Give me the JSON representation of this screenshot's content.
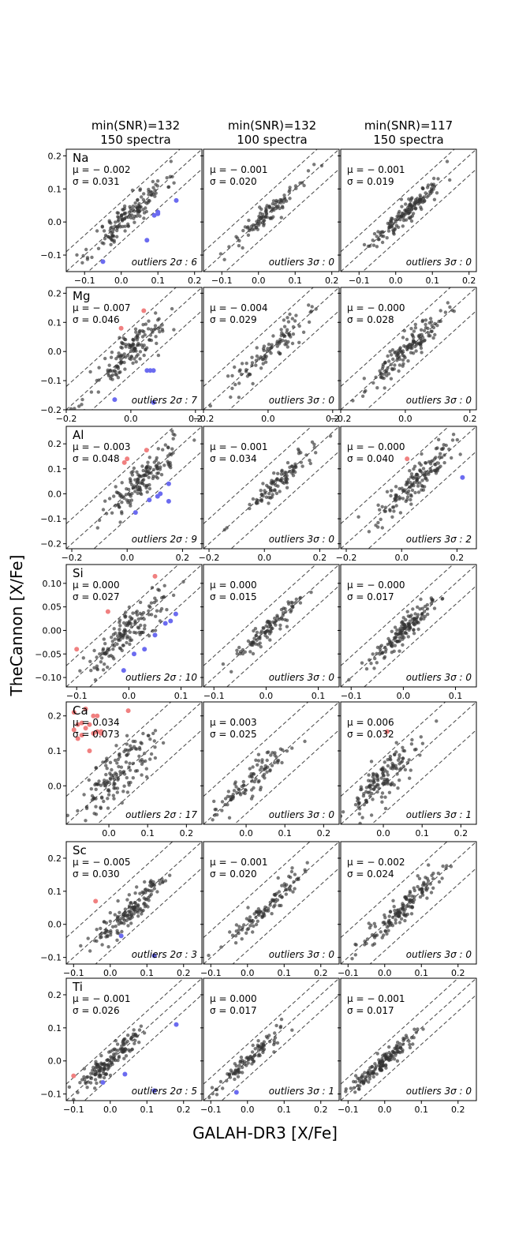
{
  "figure": {
    "column_titles": [
      [
        "min(SNR)=132",
        "150 spectra"
      ],
      [
        "min(SNR)=132",
        "100 spectra"
      ],
      [
        "min(SNR)=117",
        "150 spectra"
      ]
    ],
    "ylabel": "TheCannon [X/Fe]",
    "xlabel": "GALAH-DR3 [X/Fe]"
  },
  "chart_data": {
    "type": "scatter",
    "colors": {
      "point": "#333333",
      "high_outlier": "#f08080",
      "low_outlier": "#6b6bf0",
      "line": "#444444"
    },
    "rows": [
      {
        "element": "Na",
        "xlim": [
          -0.15,
          0.22
        ],
        "ylim": [
          -0.15,
          0.22
        ],
        "xticks": [
          -0.1,
          0.0,
          0.1,
          0.2
        ],
        "xtick_labels": [
          "−0.1",
          "0.0",
          "0.1",
          "0.2"
        ],
        "yticks": [
          -0.1,
          0.0,
          0.1,
          0.2
        ],
        "ytick_labels": [
          "−0.1",
          "0.0",
          "0.1",
          "0.2"
        ],
        "band": 0.06,
        "panels": [
          {
            "mu": "μ = − 0.002",
            "sigma": "σ = 0.031",
            "outliers_label": "outliers 2σ : 6",
            "n": 150,
            "center": [
              0.02,
              0.02
            ],
            "spread": 0.05,
            "scatter": 0.03,
            "seed": 11,
            "outlier_points": [
              [
                0.1,
                0.03,
                "low"
              ],
              [
                0.1,
                0.025,
                "low"
              ],
              [
                0.15,
                0.065,
                "low"
              ],
              [
                0.07,
                -0.055,
                "low"
              ],
              [
                -0.05,
                -0.12,
                "low"
              ],
              [
                0.09,
                0.02,
                "low"
              ]
            ]
          },
          {
            "mu": "μ = − 0.001",
            "sigma": "σ = 0.020",
            "outliers_label": "outliers 3σ : 0",
            "n": 100,
            "center": [
              0.03,
              0.03
            ],
            "spread": 0.05,
            "scatter": 0.02,
            "seed": 12,
            "outlier_points": []
          },
          {
            "mu": "μ = − 0.001",
            "sigma": "σ = 0.019",
            "outliers_label": "outliers 3σ : 0",
            "n": 150,
            "center": [
              0.03,
              0.03
            ],
            "spread": 0.05,
            "scatter": 0.02,
            "seed": 13,
            "outlier_points": []
          }
        ]
      },
      {
        "element": "Mg",
        "xlim": [
          -0.2,
          0.22
        ],
        "ylim": [
          -0.2,
          0.22
        ],
        "xticks": [
          -0.2,
          0.0,
          0.2
        ],
        "xtick_labels": [
          "−0.2",
          "0.0",
          "0.2"
        ],
        "yticks": [
          -0.2,
          -0.1,
          0.0,
          0.1,
          0.2
        ],
        "ytick_labels": [
          "−0.2",
          "−0.1",
          "0.0",
          "0.1",
          "0.2"
        ],
        "band": 0.08,
        "panels": [
          {
            "mu": "μ = − 0.007",
            "sigma": "σ = 0.046",
            "outliers_label": "outliers 2σ : 7",
            "n": 150,
            "center": [
              0.0,
              0.0
            ],
            "spread": 0.06,
            "scatter": 0.04,
            "seed": 21,
            "outlier_points": [
              [
                -0.03,
                0.08,
                "high"
              ],
              [
                0.04,
                0.14,
                "high"
              ],
              [
                0.05,
                -0.065,
                "low"
              ],
              [
                0.07,
                -0.065,
                "low"
              ],
              [
                -0.05,
                -0.165,
                "low"
              ],
              [
                0.07,
                -0.175,
                "low"
              ],
              [
                0.06,
                -0.065,
                "low"
              ]
            ]
          },
          {
            "mu": "μ = − 0.004",
            "sigma": "σ = 0.029",
            "outliers_label": "outliers 3σ : 0",
            "n": 100,
            "center": [
              0.0,
              0.0
            ],
            "spread": 0.06,
            "scatter": 0.03,
            "seed": 22,
            "outlier_points": []
          },
          {
            "mu": "μ = − 0.000",
            "sigma": "σ = 0.028",
            "outliers_label": "outliers 3σ : 0",
            "n": 150,
            "center": [
              0.0,
              0.0
            ],
            "spread": 0.06,
            "scatter": 0.03,
            "seed": 23,
            "outlier_points": []
          }
        ]
      },
      {
        "element": "Al",
        "xlim": [
          -0.22,
          0.27
        ],
        "ylim": [
          -0.22,
          0.27
        ],
        "xticks": [
          -0.2,
          0.0,
          0.2
        ],
        "xtick_labels": [
          "−0.2",
          "0.0",
          "0.2"
        ],
        "yticks": [
          -0.2,
          -0.1,
          0.0,
          0.1,
          0.2
        ],
        "ytick_labels": [
          "−0.2",
          "−0.1",
          "0.0",
          "0.1",
          "0.2"
        ],
        "band": 0.1,
        "panels": [
          {
            "mu": "μ = − 0.003",
            "sigma": "σ = 0.048",
            "outliers_label": "outliers 2σ : 9",
            "n": 150,
            "center": [
              0.05,
              0.05
            ],
            "spread": 0.07,
            "scatter": 0.045,
            "seed": 31,
            "outlier_points": [
              [
                0.0,
                0.14,
                "high"
              ],
              [
                -0.01,
                0.125,
                "high"
              ],
              [
                0.07,
                0.175,
                "high"
              ],
              [
                0.15,
                0.04,
                "low"
              ],
              [
                0.12,
                0.0,
                "low"
              ],
              [
                0.08,
                -0.025,
                "low"
              ],
              [
                0.03,
                -0.075,
                "low"
              ],
              [
                0.15,
                -0.03,
                "low"
              ],
              [
                0.11,
                -0.01,
                "low"
              ]
            ]
          },
          {
            "mu": "μ = − 0.001",
            "sigma": "σ = 0.034",
            "outliers_label": "outliers 3σ : 0",
            "n": 100,
            "center": [
              0.05,
              0.05
            ],
            "spread": 0.07,
            "scatter": 0.03,
            "seed": 32,
            "outlier_points": []
          },
          {
            "mu": "μ = − 0.000",
            "sigma": "σ = 0.040",
            "outliers_label": "outliers 3σ : 2",
            "n": 150,
            "center": [
              0.05,
              0.05
            ],
            "spread": 0.07,
            "scatter": 0.04,
            "seed": 33,
            "outlier_points": [
              [
                0.02,
                0.14,
                "high"
              ],
              [
                0.22,
                0.065,
                "low"
              ]
            ]
          }
        ]
      },
      {
        "element": "Si",
        "xlim": [
          -0.12,
          0.14
        ],
        "ylim": [
          -0.12,
          0.14
        ],
        "xticks": [
          -0.1,
          0.0,
          0.1
        ],
        "xtick_labels": [
          "−0.1",
          "0.0",
          "0.1"
        ],
        "yticks": [
          -0.1,
          -0.05,
          0.0,
          0.05,
          0.1
        ],
        "ytick_labels": [
          "−0.10",
          "−0.05",
          "0.00",
          "0.05",
          "0.10"
        ],
        "band": 0.045,
        "panels": [
          {
            "mu": "μ = 0.000",
            "sigma": "σ = 0.027",
            "outliers_label": "outliers 2σ : 10",
            "n": 150,
            "center": [
              0.0,
              0.0
            ],
            "spread": 0.04,
            "scatter": 0.025,
            "seed": 41,
            "outlier_points": [
              [
                -0.1,
                -0.04,
                "high"
              ],
              [
                -0.04,
                0.04,
                "high"
              ],
              [
                0.05,
                0.115,
                "high"
              ],
              [
                0.09,
                0.035,
                "low"
              ],
              [
                0.08,
                0.02,
                "low"
              ],
              [
                0.07,
                0.015,
                "low"
              ],
              [
                -0.01,
                -0.085,
                "low"
              ],
              [
                0.03,
                -0.04,
                "low"
              ],
              [
                0.01,
                -0.05,
                "low"
              ],
              [
                0.05,
                -0.01,
                "low"
              ]
            ]
          },
          {
            "mu": "μ = 0.000",
            "sigma": "σ = 0.015",
            "outliers_label": "outliers 3σ : 0",
            "n": 100,
            "center": [
              0.0,
              0.0
            ],
            "spread": 0.035,
            "scatter": 0.015,
            "seed": 42,
            "outlier_points": []
          },
          {
            "mu": "μ = − 0.000",
            "sigma": "σ = 0.017",
            "outliers_label": "outliers 3σ : 0",
            "n": 150,
            "center": [
              0.0,
              0.0
            ],
            "spread": 0.035,
            "scatter": 0.017,
            "seed": 43,
            "outlier_points": []
          }
        ]
      },
      {
        "element": "Ca",
        "xlim": [
          -0.11,
          0.24
        ],
        "ylim": [
          -0.11,
          0.24
        ],
        "xticks": [
          0.0,
          0.1,
          0.2
        ],
        "xtick_labels": [
          "0.0",
          "0.1",
          "0.2"
        ],
        "yticks": [
          0.0,
          0.1,
          0.2
        ],
        "ytick_labels": [
          "0.0",
          "0.1",
          "0.2"
        ],
        "band": 0.08,
        "panels": [
          {
            "mu": "μ = 0.034",
            "sigma": "σ = 0.073",
            "outliers_label": "outliers 2σ : 17",
            "n": 150,
            "center": [
              0.02,
              0.03
            ],
            "spread": 0.05,
            "scatter": 0.05,
            "seed": 51,
            "outlier_points": [
              [
                -0.09,
                0.21,
                "high"
              ],
              [
                -0.08,
                0.175,
                "high"
              ],
              [
                -0.07,
                0.18,
                "high"
              ],
              [
                -0.06,
                0.22,
                "high"
              ],
              [
                -0.05,
                0.175,
                "high"
              ],
              [
                -0.04,
                0.2,
                "high"
              ],
              [
                -0.03,
                0.155,
                "high"
              ],
              [
                -0.02,
                0.155,
                "high"
              ],
              [
                -0.08,
                0.135,
                "high"
              ],
              [
                -0.05,
                0.1,
                "high"
              ],
              [
                -0.09,
                0.16,
                "high"
              ],
              [
                -0.06,
                0.165,
                "high"
              ],
              [
                -0.04,
                0.15,
                "high"
              ],
              [
                0.05,
                0.215,
                "high"
              ],
              [
                -0.07,
                0.145,
                "high"
              ],
              [
                -0.03,
                0.2,
                "high"
              ],
              [
                -0.02,
                0.15,
                "high"
              ]
            ]
          },
          {
            "mu": "μ = 0.003",
            "sigma": "σ = 0.025",
            "outliers_label": "outliers 3σ : 0",
            "n": 100,
            "center": [
              0.01,
              0.01
            ],
            "spread": 0.05,
            "scatter": 0.03,
            "seed": 52,
            "outlier_points": []
          },
          {
            "mu": "μ = 0.006",
            "sigma": "σ = 0.032",
            "outliers_label": "outliers 3σ : 1",
            "n": 150,
            "center": [
              0.0,
              0.02
            ],
            "spread": 0.05,
            "scatter": 0.04,
            "seed": 53,
            "outlier_points": [
              [
                0.01,
                0.155,
                "high"
              ]
            ]
          }
        ]
      },
      {
        "element": "Sc",
        "xlim": [
          -0.12,
          0.25
        ],
        "ylim": [
          -0.12,
          0.25
        ],
        "xticks": [
          -0.1,
          0.0,
          0.1,
          0.2
        ],
        "xtick_labels": [
          "−0.1",
          "0.0",
          "0.1",
          "0.2"
        ],
        "yticks": [
          -0.1,
          0.0,
          0.1,
          0.2
        ],
        "ytick_labels": [
          "−0.1",
          "0.0",
          "0.1",
          "0.2"
        ],
        "band": 0.08,
        "panels": [
          {
            "mu": "μ = − 0.005",
            "sigma": "σ = 0.030",
            "outliers_label": "outliers 2σ : 3",
            "n": 150,
            "center": [
              0.05,
              0.04
            ],
            "spread": 0.05,
            "scatter": 0.03,
            "seed": 61,
            "outlier_points": [
              [
                -0.04,
                0.07,
                "high"
              ],
              [
                0.03,
                -0.035,
                "low"
              ],
              [
                0.12,
                -0.095,
                "low"
              ]
            ]
          },
          {
            "mu": "μ = − 0.001",
            "sigma": "σ = 0.020",
            "outliers_label": "outliers 3σ : 0",
            "n": 100,
            "center": [
              0.05,
              0.05
            ],
            "spread": 0.05,
            "scatter": 0.02,
            "seed": 62,
            "outlier_points": []
          },
          {
            "mu": "μ = − 0.002",
            "sigma": "σ = 0.024",
            "outliers_label": "outliers 3σ : 0",
            "n": 150,
            "center": [
              0.05,
              0.05
            ],
            "spread": 0.05,
            "scatter": 0.025,
            "seed": 63,
            "outlier_points": []
          }
        ]
      },
      {
        "element": "Ti",
        "xlim": [
          -0.12,
          0.25
        ],
        "ylim": [
          -0.12,
          0.25
        ],
        "xticks": [
          -0.1,
          0.0,
          0.1,
          0.2
        ],
        "xtick_labels": [
          "−0.1",
          "0.0",
          "0.1",
          "0.2"
        ],
        "yticks": [
          -0.1,
          0.0,
          0.1,
          0.2
        ],
        "ytick_labels": [
          "−0.1",
          "0.0",
          "0.1",
          "0.2"
        ],
        "band": 0.05,
        "panels": [
          {
            "mu": "μ = − 0.001",
            "sigma": "σ = 0.026",
            "outliers_label": "outliers 2σ : 5",
            "n": 150,
            "center": [
              0.0,
              0.0
            ],
            "spread": 0.05,
            "scatter": 0.025,
            "seed": 71,
            "outlier_points": [
              [
                -0.1,
                -0.045,
                "high"
              ],
              [
                0.18,
                0.11,
                "low"
              ],
              [
                0.04,
                -0.04,
                "low"
              ],
              [
                -0.02,
                -0.065,
                "low"
              ],
              [
                0.12,
                -0.09,
                "low"
              ]
            ]
          },
          {
            "mu": "μ = 0.000",
            "sigma": "σ = 0.017",
            "outliers_label": "outliers 3σ : 1",
            "n": 100,
            "center": [
              0.0,
              0.0
            ],
            "spread": 0.05,
            "scatter": 0.017,
            "seed": 72,
            "outlier_points": [
              [
                -0.03,
                -0.095,
                "low"
              ]
            ]
          },
          {
            "mu": "μ = − 0.001",
            "sigma": "σ = 0.017",
            "outliers_label": "outliers 3σ : 0",
            "n": 150,
            "center": [
              0.0,
              0.0
            ],
            "spread": 0.05,
            "scatter": 0.017,
            "seed": 73,
            "outlier_points": []
          }
        ]
      }
    ]
  }
}
